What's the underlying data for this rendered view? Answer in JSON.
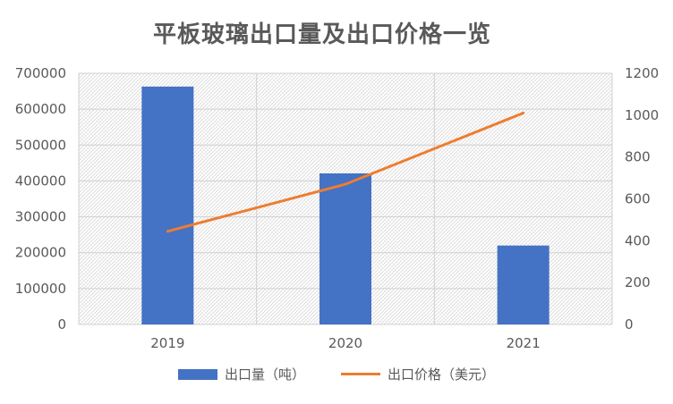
{
  "chart_data": {
    "type": "bar",
    "title": "平板玻璃出口量及出口价格一览",
    "categories": [
      "2019",
      "2020",
      "2021"
    ],
    "series": [
      {
        "name": "出口量（吨）",
        "type": "bar",
        "axis": "left",
        "color": "#4472C4",
        "values": [
          663000,
          421000,
          220000
        ]
      },
      {
        "name": "出口价格（美元）",
        "type": "line",
        "axis": "right",
        "color": "#ED7D31",
        "values": [
          445,
          670,
          1010
        ]
      }
    ],
    "y_left": {
      "ylim": [
        0,
        700000
      ],
      "ticks": [
        "0",
        "100000",
        "200000",
        "300000",
        "400000",
        "500000",
        "600000",
        "700000"
      ]
    },
    "y_right": {
      "ylim": [
        0,
        1200
      ],
      "ticks": [
        "0",
        "200",
        "400",
        "600",
        "800",
        "1000",
        "1200"
      ]
    },
    "grid": true,
    "legend": "bottom"
  }
}
